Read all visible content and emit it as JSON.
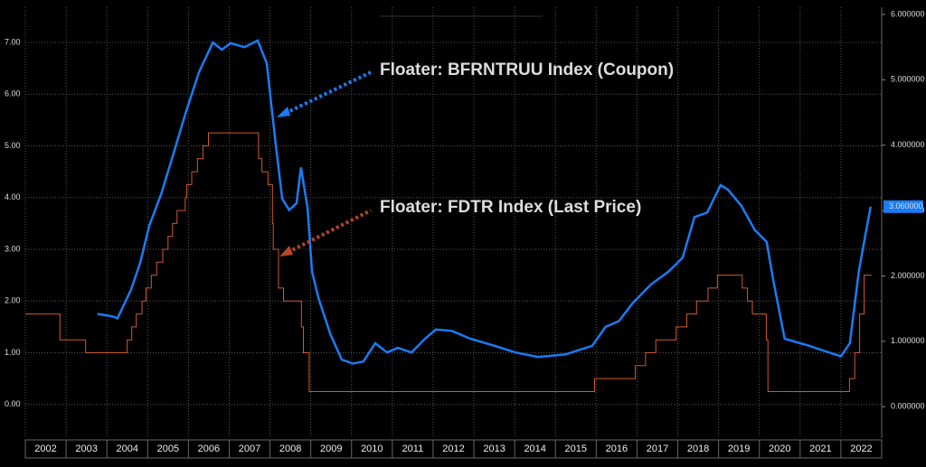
{
  "chart_data": {
    "type": "line",
    "xlim": [
      2002,
      2023
    ],
    "xticks": [
      2002,
      2003,
      2004,
      2005,
      2006,
      2007,
      2008,
      2009,
      2010,
      2011,
      2012,
      2013,
      2014,
      2015,
      2016,
      2017,
      2018,
      2019,
      2020,
      2021,
      2022
    ],
    "ylim": [
      -0.65,
      7.68
    ],
    "yticks": [
      {
        "value": 0,
        "label": "0.00"
      },
      {
        "value": 1,
        "label": "1.00"
      },
      {
        "value": 2,
        "label": "2.00"
      },
      {
        "value": 3,
        "label": "3.00"
      },
      {
        "value": 4,
        "label": "4.00"
      },
      {
        "value": 5,
        "label": "5.00"
      },
      {
        "value": 6,
        "label": "6.00"
      },
      {
        "value": 7,
        "label": "7.00"
      }
    ],
    "y2lim": [
      -0.48,
      6.11
    ],
    "y2ticks": [
      {
        "value": 0,
        "label": "0.000000"
      },
      {
        "value": 1,
        "label": "1.000000"
      },
      {
        "value": 2,
        "label": "2.000000"
      },
      {
        "value": 3,
        "label": "3.000000"
      },
      {
        "value": 4,
        "label": "4.000000"
      },
      {
        "value": 5,
        "label": "5.000000"
      },
      {
        "value": 6,
        "label": "6.000000"
      }
    ],
    "grid": true,
    "annotations": [
      {
        "text": "Floater: BFRNTRUU Index (Coupon)",
        "color": "#1a7cf5"
      },
      {
        "text": "Floater: FDTR Index (Last Price)",
        "color": "#b8452a"
      }
    ],
    "series": [
      {
        "name": "FDTR",
        "color": "#d05a30",
        "axis": "y",
        "x": [
          2002.0,
          2002.85,
          2002.85,
          2003.48,
          2003.48,
          2004.5,
          2004.5,
          2004.61,
          2004.61,
          2004.72,
          2004.72,
          2004.86,
          2004.86,
          2004.96,
          2004.96,
          2005.09,
          2005.09,
          2005.22,
          2005.22,
          2005.37,
          2005.37,
          2005.5,
          2005.5,
          2005.61,
          2005.61,
          2005.72,
          2005.72,
          2005.92,
          2005.92,
          2005.96,
          2005.96,
          2006.08,
          2006.08,
          2006.22,
          2006.22,
          2006.36,
          2006.36,
          2006.49,
          2006.49,
          2007.72,
          2007.72,
          2007.8,
          2007.8,
          2007.95,
          2007.95,
          2008.06,
          2008.06,
          2008.08,
          2008.08,
          2008.21,
          2008.21,
          2008.33,
          2008.33,
          2008.77,
          2008.77,
          2008.82,
          2008.82,
          2008.96,
          2008.96,
          2015.96,
          2015.96,
          2016.96,
          2016.96,
          2017.21,
          2017.21,
          2017.46,
          2017.46,
          2017.96,
          2017.96,
          2018.22,
          2018.22,
          2018.46,
          2018.46,
          2018.74,
          2018.74,
          2018.97,
          2018.97,
          2019.58,
          2019.58,
          2019.71,
          2019.71,
          2019.83,
          2019.83,
          2020.17,
          2020.17,
          2020.21,
          2020.21,
          2022.21,
          2022.21,
          2022.34,
          2022.34,
          2022.46,
          2022.46,
          2022.57,
          2022.57,
          2022.75
        ],
        "values": [
          1.75,
          1.75,
          1.25,
          1.25,
          1.0,
          1.0,
          1.25,
          1.25,
          1.5,
          1.5,
          1.75,
          1.75,
          2.0,
          2.0,
          2.25,
          2.25,
          2.5,
          2.5,
          2.75,
          2.75,
          3.0,
          3.0,
          3.25,
          3.25,
          3.5,
          3.5,
          3.75,
          3.75,
          4.0,
          4.0,
          4.25,
          4.25,
          4.5,
          4.5,
          4.75,
          4.75,
          5.0,
          5.0,
          5.25,
          5.25,
          4.75,
          4.75,
          4.5,
          4.5,
          4.25,
          4.25,
          3.5,
          3.5,
          3.0,
          3.0,
          2.25,
          2.25,
          2.0,
          2.0,
          1.5,
          1.5,
          1.0,
          1.0,
          0.25,
          0.25,
          0.5,
          0.5,
          0.75,
          0.75,
          1.0,
          1.0,
          1.25,
          1.25,
          1.5,
          1.5,
          1.75,
          1.75,
          2.0,
          2.0,
          2.25,
          2.25,
          2.5,
          2.5,
          2.25,
          2.25,
          2.0,
          2.0,
          1.75,
          1.75,
          1.25,
          1.25,
          0.25,
          0.25,
          0.5,
          0.5,
          1.0,
          1.0,
          1.75,
          1.75,
          2.5,
          2.5
        ]
      },
      {
        "name": "BFRNTRUU",
        "color": "#1a7cf5",
        "axis": "y2",
        "last_label": "3.060000",
        "x": [
          2003.77,
          2004.15,
          2004.26,
          2004.6,
          2004.82,
          2005.04,
          2005.33,
          2005.6,
          2005.93,
          2006.26,
          2006.6,
          2006.82,
          2007.03,
          2007.37,
          2007.7,
          2007.92,
          2008.14,
          2008.3,
          2008.47,
          2008.65,
          2008.76,
          2008.92,
          2009.03,
          2009.19,
          2009.48,
          2009.76,
          2010.03,
          2010.29,
          2010.58,
          2010.87,
          2011.13,
          2011.47,
          2011.8,
          2012.07,
          2012.46,
          2012.91,
          2013.46,
          2014.02,
          2014.57,
          2015.24,
          2015.9,
          2016.23,
          2016.56,
          2016.9,
          2017.34,
          2017.78,
          2018.12,
          2018.41,
          2018.72,
          2019.05,
          2019.23,
          2019.56,
          2019.89,
          2020.18,
          2020.34,
          2020.62,
          2021.0,
          2021.18,
          2021.56,
          2022.0,
          2022.22,
          2022.44,
          2022.6,
          2022.73
        ],
        "values": [
          1.42,
          1.38,
          1.35,
          1.8,
          2.21,
          2.77,
          3.25,
          3.8,
          4.49,
          5.12,
          5.57,
          5.46,
          5.56,
          5.5,
          5.6,
          5.25,
          4.01,
          3.18,
          3.01,
          3.11,
          3.66,
          3.04,
          2.07,
          1.66,
          1.11,
          0.72,
          0.66,
          0.69,
          0.97,
          0.83,
          0.9,
          0.83,
          1.04,
          1.18,
          1.16,
          1.04,
          0.94,
          0.83,
          0.76,
          0.8,
          0.93,
          1.22,
          1.31,
          1.59,
          1.87,
          2.07,
          2.28,
          2.9,
          2.97,
          3.39,
          3.32,
          3.07,
          2.7,
          2.52,
          1.94,
          1.04,
          0.97,
          0.94,
          0.86,
          0.77,
          0.97,
          2.07,
          2.63,
          3.06
        ]
      }
    ]
  }
}
